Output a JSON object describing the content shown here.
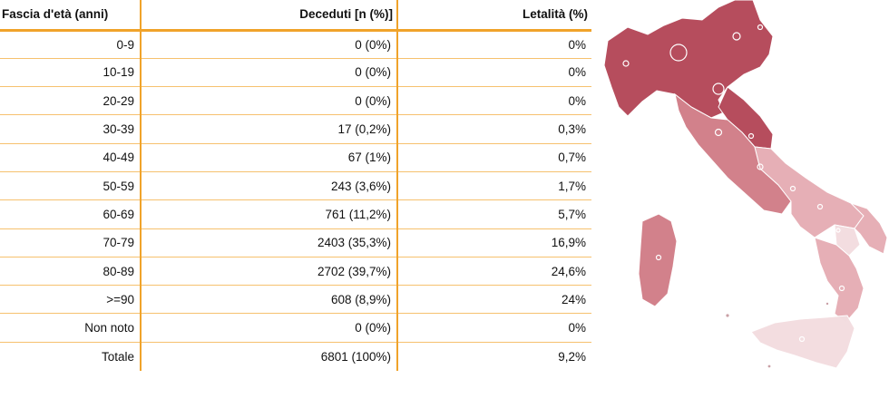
{
  "table": {
    "headers": [
      "Fascia d'età (anni)",
      "Deceduti [n (%)]",
      "Letalità (%)"
    ],
    "rows": [
      [
        "0-9",
        "0 (0%)",
        "0%"
      ],
      [
        "10-19",
        "0 (0%)",
        "0%"
      ],
      [
        "20-29",
        "0 (0%)",
        "0%"
      ],
      [
        "30-39",
        "17 (0,2%)",
        "0,3%"
      ],
      [
        "40-49",
        "67 (1%)",
        "0,7%"
      ],
      [
        "50-59",
        "243 (3,6%)",
        "1,7%"
      ],
      [
        "60-69",
        "761 (11,2%)",
        "5,7%"
      ],
      [
        "70-79",
        "2403 (35,3%)",
        "16,9%"
      ],
      [
        "80-89",
        "2702 (39,7%)",
        "24,6%"
      ],
      [
        ">=90",
        "608 (8,9%)",
        "24%"
      ],
      [
        "Non noto",
        "0 (0%)",
        "0%"
      ],
      [
        "Totale",
        "6801 (100%)",
        "9,2%"
      ]
    ]
  },
  "map": {
    "colors": {
      "dark": "#b54a5a",
      "mid": "#d27f89",
      "light": "#e6aeb5",
      "pale": "#f3dde0"
    }
  }
}
